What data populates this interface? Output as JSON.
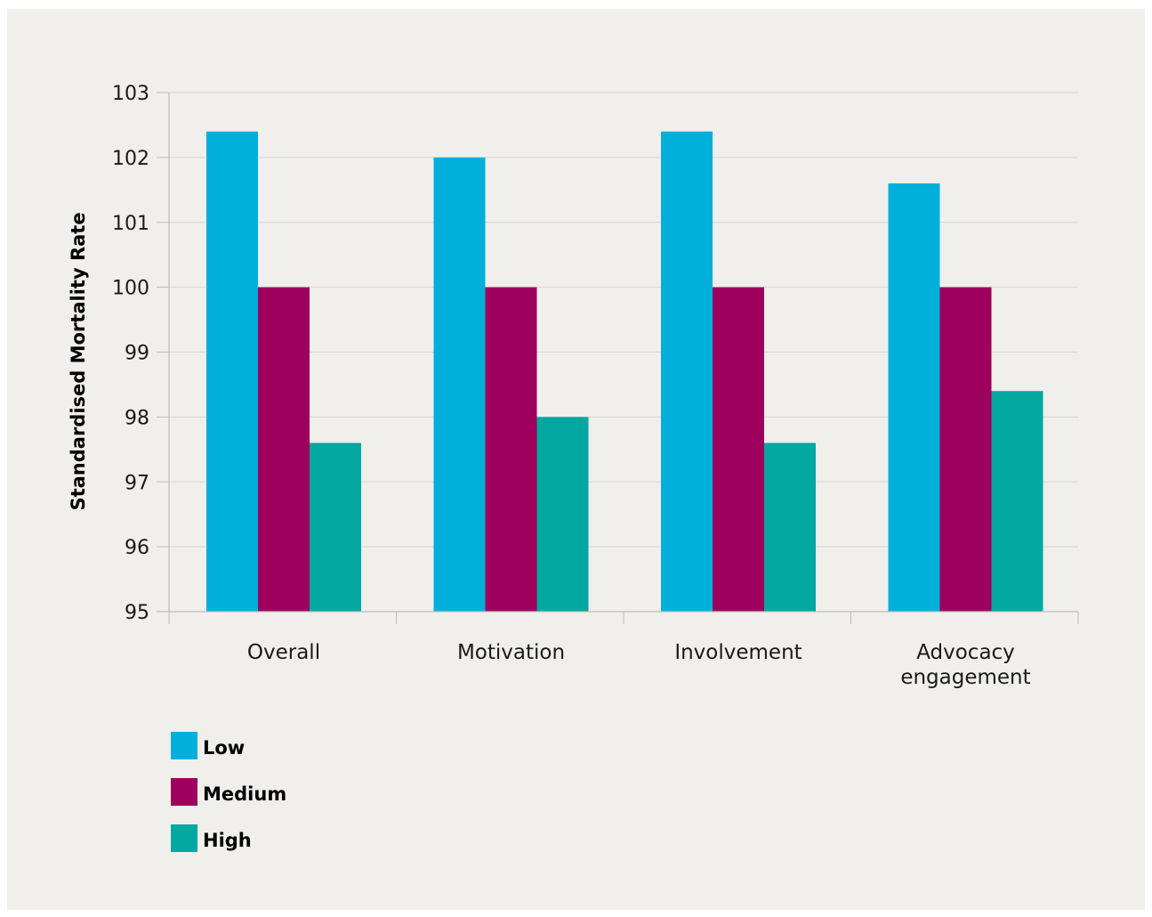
{
  "chart_data": {
    "type": "bar",
    "title": "",
    "xlabel": "",
    "ylabel": "Standardised Mortality Rate",
    "ylim": [
      95,
      103
    ],
    "yticks": [
      95,
      96,
      97,
      98,
      99,
      100,
      101,
      102,
      103
    ],
    "grid": true,
    "legend_position": "bottom-left",
    "categories": [
      [
        "Overall"
      ],
      [
        "Motivation"
      ],
      [
        "Involvement"
      ],
      [
        "Advocacy",
        "engagement"
      ]
    ],
    "series": [
      {
        "name": "Low",
        "color": "#00b0db",
        "values": [
          102.4,
          102.0,
          102.4,
          101.6
        ]
      },
      {
        "name": "Medium",
        "color": "#9e005d",
        "values": [
          100.0,
          100.0,
          100.0,
          100.0
        ]
      },
      {
        "name": "High",
        "color": "#00a8a0",
        "values": [
          97.6,
          98.0,
          97.6,
          98.4
        ]
      }
    ]
  }
}
